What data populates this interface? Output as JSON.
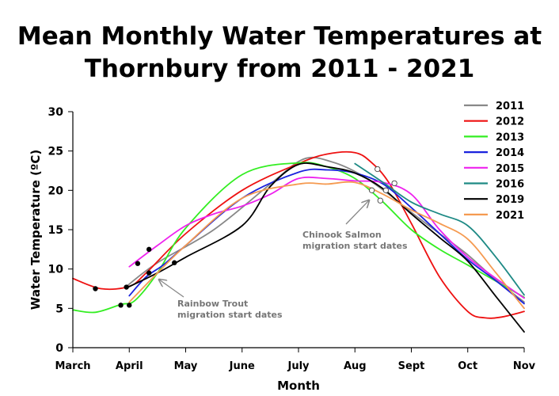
{
  "chart_data": {
    "type": "line",
    "title_lines": [
      "Mean Monthly Water Temperatures at",
      "Thornbury from 2011 - 2021"
    ],
    "xlabel": "Month",
    "ylabel": "Water Temperature (ºC)",
    "x_ticks": [
      "March",
      "April",
      "May",
      "June",
      "July",
      "Aug",
      "Sept",
      "Oct",
      "Nov"
    ],
    "ylim": [
      0,
      30
    ],
    "y_ticks": [
      0,
      5,
      10,
      15,
      20,
      25,
      30
    ],
    "grid": false,
    "legend_position": "top-right",
    "x_unit": "month index (0 = March, 8 = November)",
    "series": [
      {
        "name": "2011",
        "color": "#888888",
        "x": [
          0.95,
          1.5,
          2.5,
          3.5,
          4.1,
          4.6,
          5.1,
          5.6,
          6.0,
          6.5,
          7.0,
          7.5,
          8.0
        ],
        "y": [
          7.8,
          10.8,
          15.0,
          20.8,
          24.0,
          23.6,
          22.0,
          19.5,
          17.2,
          14.5,
          11.8,
          8.6,
          5.8
        ]
      },
      {
        "name": "2012",
        "color": "#ee1111",
        "x": [
          0.0,
          0.5,
          1.0,
          1.3,
          2.0,
          3.0,
          4.0,
          4.5,
          5.0,
          5.3,
          5.6,
          6.0,
          6.5,
          7.0,
          7.3,
          7.6,
          8.0
        ],
        "y": [
          8.8,
          7.5,
          7.8,
          9.5,
          14.5,
          20.0,
          23.4,
          24.6,
          24.8,
          23.5,
          21.0,
          15.8,
          9.0,
          4.6,
          3.8,
          3.9,
          4.6
        ]
      },
      {
        "name": "2013",
        "color": "#33ee22",
        "x": [
          0.0,
          0.4,
          0.85,
          1.1,
          1.5,
          2.0,
          3.0,
          4.0,
          4.5,
          5.0,
          5.5,
          6.0,
          6.5,
          7.0,
          8.0
        ],
        "y": [
          4.8,
          4.5,
          5.5,
          6.0,
          9.5,
          15.2,
          22.0,
          23.5,
          23.0,
          21.5,
          18.5,
          15.0,
          12.5,
          10.5,
          6.4
        ]
      },
      {
        "name": "2014",
        "color": "#1a22dd",
        "x": [
          1.0,
          1.3,
          1.6,
          2.0,
          3.0,
          4.0,
          4.5,
          5.0,
          5.5,
          6.0,
          6.5,
          7.0,
          7.5,
          8.0
        ],
        "y": [
          6.6,
          9.0,
          10.5,
          13.0,
          19.0,
          22.3,
          22.6,
          22.2,
          20.8,
          17.8,
          14.5,
          11.2,
          8.5,
          5.6
        ]
      },
      {
        "name": "2015",
        "color": "#ee22ee",
        "x": [
          1.0,
          1.5,
          2.0,
          2.5,
          3.0,
          3.5,
          4.0,
          4.5,
          5.0,
          5.5,
          6.0,
          6.5,
          7.0,
          7.5,
          8.0
        ],
        "y": [
          10.3,
          13.0,
          15.5,
          17.0,
          18.0,
          19.5,
          21.5,
          21.5,
          21.2,
          21.0,
          19.5,
          15.0,
          11.5,
          8.8,
          6.3
        ]
      },
      {
        "name": "2016",
        "color": "#1e8a85",
        "x": [
          5.0,
          5.5,
          6.0,
          6.5,
          7.0,
          7.5,
          8.0
        ],
        "y": [
          23.4,
          21.0,
          18.5,
          17.0,
          15.5,
          11.5,
          6.7
        ]
      },
      {
        "name": "2019",
        "color": "#000000",
        "x": [
          0.95,
          1.5,
          2.0,
          3.0,
          3.5,
          4.0,
          4.5,
          5.0,
          5.5,
          6.0,
          6.5,
          7.0,
          7.5,
          8.0
        ],
        "y": [
          7.6,
          9.5,
          11.5,
          15.5,
          20.5,
          23.3,
          23.0,
          22.2,
          20.2,
          17.0,
          14.0,
          11.0,
          6.5,
          2.0
        ]
      },
      {
        "name": "2021",
        "color": "#f59a50",
        "x": [
          1.0,
          1.5,
          2.0,
          3.0,
          4.0,
          4.5,
          5.0,
          5.5,
          6.0,
          6.5,
          7.0,
          7.5,
          8.0
        ],
        "y": [
          5.8,
          9.5,
          13.0,
          19.0,
          20.8,
          20.8,
          21.0,
          19.5,
          17.5,
          15.8,
          13.8,
          9.5,
          5.0
        ]
      }
    ],
    "rainbow_trout_points": {
      "x": [
        0.4,
        0.85,
        0.95,
        1.0,
        1.15,
        1.35,
        1.35,
        1.8
      ],
      "y": [
        7.5,
        5.4,
        7.7,
        5.4,
        10.7,
        12.5,
        9.5,
        10.8
      ]
    },
    "chinook_salmon_points": {
      "x": [
        5.3,
        5.4,
        5.45,
        5.55,
        5.7
      ],
      "y": [
        20.0,
        22.7,
        18.7,
        20.0,
        20.9
      ]
    },
    "annotations": [
      {
        "lines": [
          "Rainbow Trout",
          "migration start dates"
        ],
        "color": "#777777"
      },
      {
        "lines": [
          "Chinook Salmon",
          "migration start dates"
        ],
        "color": "#777777"
      }
    ]
  }
}
